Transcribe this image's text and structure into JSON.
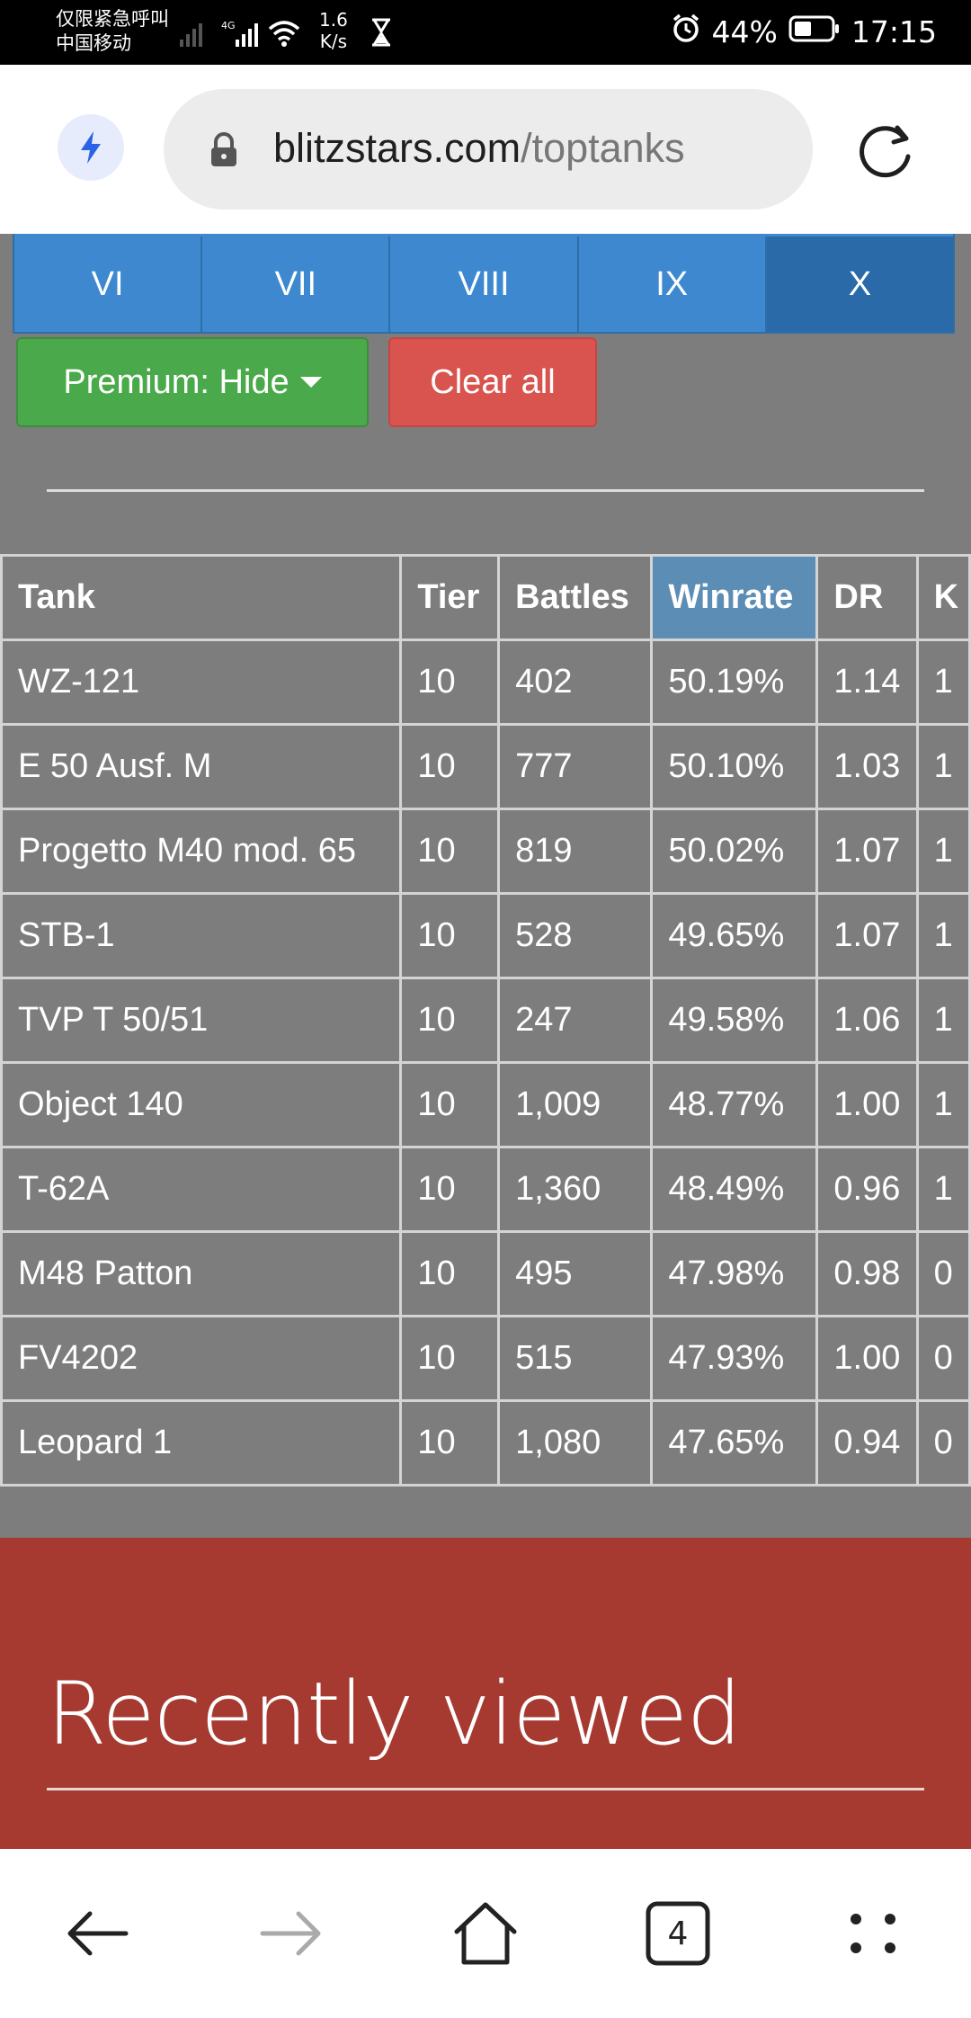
{
  "status_bar": {
    "carrier_line1": "仅限紧急呼叫",
    "carrier_line2": "中国移动",
    "network": "4G",
    "speed_value": "1.6",
    "speed_unit": "K/s",
    "battery": "44%",
    "time": "17:15"
  },
  "browser": {
    "url_domain": "blitzstars.com",
    "url_path": "/toptanks",
    "tab_count": "4"
  },
  "tiers": [
    "VI",
    "VII",
    "VIII",
    "IX",
    "X"
  ],
  "active_tier": "X",
  "filters": {
    "premium_label": "Premium: Hide",
    "clear_label": "Clear all"
  },
  "table": {
    "headers": [
      "Tank",
      "Tier",
      "Battles",
      "Winrate",
      "DR",
      "K"
    ],
    "sorted_column": "Winrate",
    "rows": [
      [
        "WZ-121",
        "10",
        "402",
        "50.19%",
        "1.14",
        "1"
      ],
      [
        "E 50 Ausf. M",
        "10",
        "777",
        "50.10%",
        "1.03",
        "1"
      ],
      [
        "Progetto M40 mod. 65",
        "10",
        "819",
        "50.02%",
        "1.07",
        "1"
      ],
      [
        "STB-1",
        "10",
        "528",
        "49.65%",
        "1.07",
        "1"
      ],
      [
        "TVP T 50/51",
        "10",
        "247",
        "49.58%",
        "1.06",
        "1"
      ],
      [
        "Object 140",
        "10",
        "1,009",
        "48.77%",
        "1.00",
        "1"
      ],
      [
        "T-62A",
        "10",
        "1,360",
        "48.49%",
        "0.96",
        "1"
      ],
      [
        "M48 Patton",
        "10",
        "495",
        "47.98%",
        "0.98",
        "0"
      ],
      [
        "FV4202",
        "10",
        "515",
        "47.93%",
        "1.00",
        "0"
      ],
      [
        "Leopard 1",
        "10",
        "1,080",
        "47.65%",
        "0.94",
        "0"
      ]
    ]
  },
  "recently_viewed": {
    "title": "Recently viewed"
  },
  "icons": {
    "bolt": "bolt-icon",
    "lock": "lock-icon",
    "reload": "reload-icon",
    "back": "back-arrow-icon",
    "forward": "forward-arrow-icon",
    "home": "home-icon",
    "tabs": "tabs-icon",
    "menu": "menu-dots-icon"
  },
  "colors": {
    "tier_tab": "#3d88cf",
    "tier_active": "#2a6aa8",
    "premium_button": "#4aa94a",
    "clear_button": "#d9534f",
    "sorted_header": "#5b8db5",
    "recent_band": "#a63a30",
    "page_bg": "#7d7d7d"
  }
}
